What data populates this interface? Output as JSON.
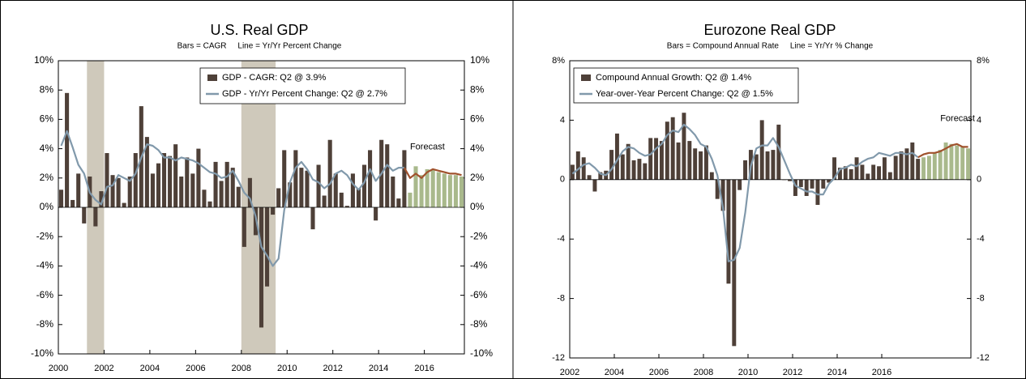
{
  "chart_data": [
    {
      "type": "bar",
      "title": "U.S. Real GDP",
      "subtitle": "Bars = CAGR     Line = Yr/Yr Percent Change",
      "annotation": "Forecast",
      "categories": [
        "2000",
        null,
        null,
        null,
        null,
        null,
        null,
        null,
        "2002",
        null,
        null,
        null,
        null,
        null,
        null,
        null,
        "2004",
        null,
        null,
        null,
        null,
        null,
        null,
        null,
        "2006",
        null,
        null,
        null,
        null,
        null,
        null,
        null,
        "2008",
        null,
        null,
        null,
        null,
        null,
        null,
        null,
        "2010",
        null,
        null,
        null,
        null,
        null,
        null,
        null,
        "2012",
        null,
        null,
        null,
        null,
        null,
        null,
        null,
        "2014",
        null,
        null,
        null,
        null,
        null,
        null,
        null,
        "2016",
        null,
        null,
        null,
        null,
        null,
        null
      ],
      "series": [
        {
          "name": "GDP - CAGR: Q2 @ 3.9%",
          "type": "bar",
          "color": "#4e4038",
          "values": [
            1.2,
            7.8,
            0.5,
            2.3,
            -1.1,
            2.1,
            -1.3,
            1.1,
            3.7,
            2.2,
            2.0,
            0.3,
            2.1,
            3.7,
            6.9,
            4.8,
            2.3,
            3.0,
            3.7,
            3.5,
            4.3,
            2.1,
            3.4,
            2.3,
            4.0,
            1.2,
            0.4,
            3.1,
            1.8,
            3.1,
            2.7,
            1.4,
            -2.7,
            2.0,
            -1.9,
            -8.2,
            -5.4,
            -0.5,
            1.3,
            3.9,
            1.7,
            3.9,
            2.7,
            2.5,
            -1.5,
            2.9,
            0.8,
            4.6,
            2.3,
            1.0,
            0.1,
            2.3,
            1.3,
            2.9,
            3.9,
            -0.9,
            4.6,
            4.3,
            2.1,
            0.6,
            3.9,
            null,
            null,
            null,
            null,
            null,
            null,
            null,
            null,
            null,
            null
          ]
        },
        {
          "type": "bar",
          "color": "#a9b98c",
          "values": [
            null,
            null,
            null,
            null,
            null,
            null,
            null,
            null,
            null,
            null,
            null,
            null,
            null,
            null,
            null,
            null,
            null,
            null,
            null,
            null,
            null,
            null,
            null,
            null,
            null,
            null,
            null,
            null,
            null,
            null,
            null,
            null,
            null,
            null,
            null,
            null,
            null,
            null,
            null,
            null,
            null,
            null,
            null,
            null,
            null,
            null,
            null,
            null,
            null,
            null,
            null,
            null,
            null,
            null,
            null,
            null,
            null,
            null,
            null,
            null,
            null,
            1.0,
            2.8,
            2.2,
            2.6,
            2.6,
            2.4,
            2.3,
            2.2,
            2.2,
            2.1
          ]
        },
        {
          "name": "GDP - Yr/Yr Percent Change: Q2 @ 2.7%",
          "type": "line",
          "color": "#8199ab",
          "values": [
            4.2,
            5.2,
            4.1,
            2.9,
            2.3,
            1.0,
            0.5,
            0.2,
            1.4,
            1.5,
            2.2,
            2.0,
            1.8,
            2.3,
            3.4,
            4.3,
            4.2,
            3.9,
            3.4,
            3.4,
            3.2,
            3.4,
            3.3,
            3.2,
            3.0,
            2.7,
            2.4,
            2.3,
            2.0,
            2.1,
            2.5,
            1.8,
            1.0,
            0.6,
            -0.6,
            -2.7,
            -3.3,
            -4.0,
            -3.5,
            -0.2,
            1.7,
            2.7,
            3.1,
            2.6,
            1.9,
            1.7,
            1.3,
            1.6,
            2.3,
            2.5,
            2.2,
            1.6,
            1.2,
            1.7,
            2.6,
            1.8,
            2.3,
            2.9,
            2.5,
            2.7,
            2.7,
            null,
            null,
            null,
            null,
            null,
            null,
            null,
            null,
            null,
            null
          ]
        },
        {
          "type": "line",
          "color": "#a0522d",
          "values": [
            null,
            null,
            null,
            null,
            null,
            null,
            null,
            null,
            null,
            null,
            null,
            null,
            null,
            null,
            null,
            null,
            null,
            null,
            null,
            null,
            null,
            null,
            null,
            null,
            null,
            null,
            null,
            null,
            null,
            null,
            null,
            null,
            null,
            null,
            null,
            null,
            null,
            null,
            null,
            null,
            null,
            null,
            null,
            null,
            null,
            null,
            null,
            null,
            null,
            null,
            null,
            null,
            null,
            null,
            null,
            null,
            null,
            null,
            null,
            null,
            2.7,
            2.0,
            2.3,
            2.0,
            2.4,
            2.6,
            2.5,
            2.4,
            2.3,
            2.3,
            2.2
          ]
        }
      ],
      "recessions": [
        {
          "start": 5,
          "end": 7
        },
        {
          "start": 32,
          "end": 37
        }
      ],
      "recession_color": "#cfc9bb",
      "ylim": [
        -10,
        10
      ],
      "yticks": [
        {
          "value": 10,
          "label": "10%"
        },
        {
          "value": 8,
          "label": "8%"
        },
        {
          "value": 6,
          "label": "6%"
        },
        {
          "value": 4,
          "label": "4%"
        },
        {
          "value": 2,
          "label": "2%"
        },
        {
          "value": 0,
          "label": "0%"
        },
        {
          "value": -2,
          "label": "-2%"
        },
        {
          "value": -4,
          "label": "-4%"
        },
        {
          "value": -6,
          "label": "-6%"
        },
        {
          "value": -8,
          "label": "-8%"
        },
        {
          "value": -10,
          "label": "-10%"
        }
      ],
      "y2lim": [
        -10,
        10
      ],
      "y2ticks": [
        {
          "value": 10,
          "label": "10%"
        },
        {
          "value": 8,
          "label": "8%"
        },
        {
          "value": 6,
          "label": "6%"
        },
        {
          "value": 4,
          "label": "4%"
        },
        {
          "value": 2,
          "label": "2%"
        },
        {
          "value": 0,
          "label": "0%"
        },
        {
          "value": -2,
          "label": "-2%"
        },
        {
          "value": -4,
          "label": "-4%"
        },
        {
          "value": -6,
          "label": "-6%"
        },
        {
          "value": -8,
          "label": "-8%"
        },
        {
          "value": -10,
          "label": "-10%"
        }
      ]
    },
    {
      "type": "bar",
      "title": "Eurozone Real GDP",
      "subtitle": "Bars = Compound Annual Rate     Line = Yr/Yr % Change",
      "annotation": "Forecast",
      "categories": [
        "2002",
        null,
        null,
        null,
        null,
        null,
        null,
        null,
        "2004",
        null,
        null,
        null,
        null,
        null,
        null,
        null,
        "2006",
        null,
        null,
        null,
        null,
        null,
        null,
        null,
        "2008",
        null,
        null,
        null,
        null,
        null,
        null,
        null,
        "2010",
        null,
        null,
        null,
        null,
        null,
        null,
        null,
        "2012",
        null,
        null,
        null,
        null,
        null,
        null,
        null,
        "2014",
        null,
        null,
        null,
        null,
        null,
        null,
        null,
        "2016",
        null,
        null,
        null,
        null,
        null,
        null,
        null,
        null,
        null,
        null,
        null,
        null,
        null,
        null,
        null
      ],
      "series": [
        {
          "name": "Compound Annual Growth: Q2 @ 1.4%",
          "type": "bar",
          "color": "#4e4038",
          "values": [
            1.0,
            1.9,
            1.5,
            0.3,
            -0.8,
            0.5,
            0.6,
            2.0,
            3.1,
            1.7,
            2.4,
            1.3,
            1.4,
            1.1,
            2.8,
            2.8,
            2.6,
            3.9,
            4.2,
            2.5,
            4.5,
            2.6,
            2.1,
            1.9,
            2.3,
            0.5,
            -1.3,
            -2.1,
            -7.0,
            -11.2,
            -0.7,
            1.3,
            2.0,
            1.7,
            4.0,
            1.9,
            2.0,
            3.7,
            0.0,
            -0.1,
            -1.1,
            -0.5,
            -1.1,
            -0.6,
            -1.7,
            -0.6,
            -0.2,
            1.5,
            0.8,
            0.9,
            0.7,
            1.5,
            1.0,
            0.4,
            1.0,
            0.9,
            1.5,
            0.5,
            1.6,
            1.9,
            2.1,
            2.5,
            1.4,
            null,
            null,
            null,
            null,
            null,
            null,
            null,
            null,
            null
          ]
        },
        {
          "type": "bar",
          "color": "#a9b98c",
          "values": [
            null,
            null,
            null,
            null,
            null,
            null,
            null,
            null,
            null,
            null,
            null,
            null,
            null,
            null,
            null,
            null,
            null,
            null,
            null,
            null,
            null,
            null,
            null,
            null,
            null,
            null,
            null,
            null,
            null,
            null,
            null,
            null,
            null,
            null,
            null,
            null,
            null,
            null,
            null,
            null,
            null,
            null,
            null,
            null,
            null,
            null,
            null,
            null,
            null,
            null,
            null,
            null,
            null,
            null,
            null,
            null,
            null,
            null,
            null,
            null,
            null,
            null,
            null,
            1.5,
            1.6,
            1.8,
            2.0,
            2.5,
            2.4,
            2.3,
            2.2,
            2.1
          ]
        },
        {
          "name": "Year-over-Year Percent Change: Q2 @ 1.5%",
          "type": "line",
          "color": "#8199ab",
          "values": [
            0.4,
            0.7,
            1.0,
            1.1,
            0.8,
            0.4,
            0.3,
            0.7,
            1.3,
            1.9,
            2.2,
            2.1,
            1.8,
            1.6,
            1.7,
            2.1,
            2.4,
            3.0,
            3.3,
            3.2,
            3.7,
            3.4,
            3.0,
            2.4,
            2.2,
            1.4,
            0.3,
            -1.9,
            -5.5,
            -5.4,
            -4.6,
            -2.2,
            0.9,
            2.1,
            2.3,
            2.3,
            2.8,
            2.2,
            1.3,
            0.4,
            -0.4,
            -0.6,
            -0.8,
            -0.8,
            -1.0,
            -1.0,
            -0.3,
            0.1,
            0.7,
            0.8,
            1.0,
            0.9,
            1.2,
            1.4,
            1.5,
            1.8,
            1.7,
            1.6,
            1.8,
            1.8,
            1.7,
            1.8,
            1.5,
            null,
            null,
            null,
            null,
            null,
            null,
            null,
            null,
            null
          ]
        },
        {
          "type": "line",
          "color": "#a0522d",
          "values": [
            null,
            null,
            null,
            null,
            null,
            null,
            null,
            null,
            null,
            null,
            null,
            null,
            null,
            null,
            null,
            null,
            null,
            null,
            null,
            null,
            null,
            null,
            null,
            null,
            null,
            null,
            null,
            null,
            null,
            null,
            null,
            null,
            null,
            null,
            null,
            null,
            null,
            null,
            null,
            null,
            null,
            null,
            null,
            null,
            null,
            null,
            null,
            null,
            null,
            null,
            null,
            null,
            null,
            null,
            null,
            null,
            null,
            null,
            null,
            null,
            null,
            null,
            1.5,
            1.7,
            1.8,
            1.8,
            1.9,
            2.1,
            2.3,
            2.4,
            2.2,
            2.2
          ]
        }
      ],
      "ylim": [
        -12,
        8
      ],
      "yticks": [
        {
          "value": 8,
          "label": "8%"
        },
        4,
        0,
        -4,
        -8,
        -12
      ],
      "y2lim": [
        -12,
        8
      ],
      "y2ticks": [
        {
          "value": 8,
          "label": "8%"
        },
        4,
        0,
        -4,
        -8,
        -12
      ]
    }
  ]
}
